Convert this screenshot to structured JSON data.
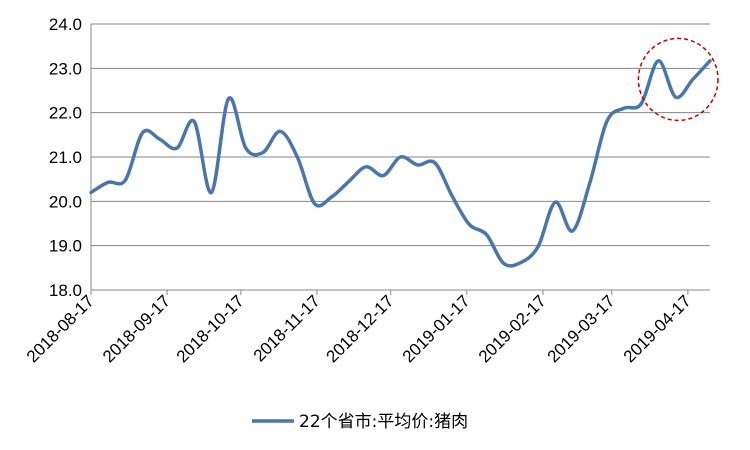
{
  "chart_data": {
    "type": "line",
    "title": "",
    "xlabel": "",
    "ylabel": "",
    "ylim": [
      18.0,
      24.0
    ],
    "y_ticks": [
      "18.0",
      "19.0",
      "20.0",
      "21.0",
      "22.0",
      "23.0",
      "24.0"
    ],
    "x_ticks": [
      "2018-08-17",
      "2018-09-17",
      "2018-10-17",
      "2018-11-17",
      "2018-12-17",
      "2019-01-17",
      "2019-02-17",
      "2019-03-17",
      "2019-04-17"
    ],
    "grid": "horizontal",
    "legend_position": "bottom",
    "line_color": "#4A76AC",
    "highlight_color": "#C00000",
    "series": [
      {
        "name": "22个省市:平均价:猪肉",
        "points": [
          [
            "2018-08-17",
            20.2
          ],
          [
            "2018-08-24",
            20.43
          ],
          [
            "2018-08-31",
            20.48
          ],
          [
            "2018-09-07",
            21.55
          ],
          [
            "2018-09-14",
            21.4
          ],
          [
            "2018-09-21",
            21.2
          ],
          [
            "2018-09-28",
            21.8
          ],
          [
            "2018-10-05",
            20.2
          ],
          [
            "2018-10-12",
            22.32
          ],
          [
            "2018-10-19",
            21.2
          ],
          [
            "2018-10-26",
            21.1
          ],
          [
            "2018-11-02",
            21.58
          ],
          [
            "2018-11-09",
            21.0
          ],
          [
            "2018-11-16",
            19.95
          ],
          [
            "2018-11-23",
            20.1
          ],
          [
            "2018-11-30",
            20.45
          ],
          [
            "2018-12-07",
            20.78
          ],
          [
            "2018-12-14",
            20.58
          ],
          [
            "2018-12-21",
            21.0
          ],
          [
            "2018-12-28",
            20.82
          ],
          [
            "2019-01-04",
            20.87
          ],
          [
            "2019-01-11",
            20.12
          ],
          [
            "2019-01-18",
            19.48
          ],
          [
            "2019-01-25",
            19.25
          ],
          [
            "2019-02-01",
            18.6
          ],
          [
            "2019-02-08",
            18.62
          ],
          [
            "2019-02-15",
            18.98
          ],
          [
            "2019-02-22",
            19.98
          ],
          [
            "2019-03-01",
            19.33
          ],
          [
            "2019-03-08",
            20.4
          ],
          [
            "2019-03-15",
            21.8
          ],
          [
            "2019-03-22",
            22.1
          ],
          [
            "2019-03-29",
            22.2
          ],
          [
            "2019-04-05",
            23.17
          ],
          [
            "2019-04-12",
            22.35
          ],
          [
            "2019-04-19",
            22.75
          ],
          [
            "2019-04-26",
            23.17
          ]
        ]
      }
    ]
  }
}
